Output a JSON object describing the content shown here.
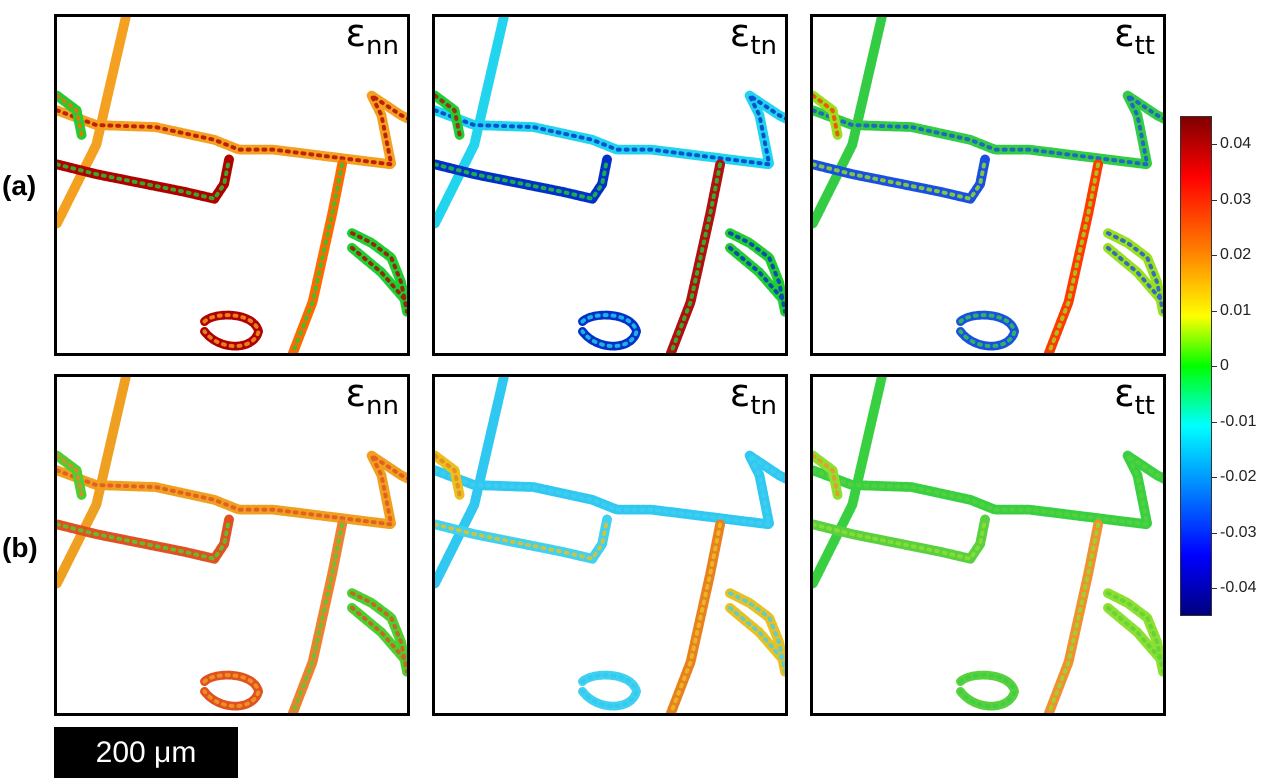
{
  "rows": [
    {
      "label": "(a)",
      "panels": [
        {
          "symbol": "ε",
          "sub": "nn",
          "c1": "#f4a020",
          "c2": "#b00000",
          "c3": "#22cc33",
          "c4": "#ff6a00"
        },
        {
          "symbol": "ε",
          "sub": "tn",
          "c1": "#22d4ee",
          "c2": "#0030c8",
          "c3": "#22cc33",
          "c4": "#b01010"
        },
        {
          "symbol": "ε",
          "sub": "tt",
          "c1": "#33cc44",
          "c2": "#1a50e0",
          "c3": "#9ae020",
          "c4": "#ff3a00"
        }
      ]
    },
    {
      "label": "(b)",
      "panels": [
        {
          "symbol": "ε",
          "sub": "nn",
          "c1": "#f0a020",
          "c2": "#e05020",
          "c3": "#4cd030",
          "c4": "#f08030"
        },
        {
          "symbol": "ε",
          "sub": "tn",
          "c1": "#30c8f0",
          "c2": "#40d0f0",
          "c3": "#e8c020",
          "c4": "#e88020"
        },
        {
          "symbol": "ε",
          "sub": "tt",
          "c1": "#38d040",
          "c2": "#5ad040",
          "c3": "#8ee030",
          "c4": "#f09030"
        }
      ]
    }
  ],
  "colorbar": {
    "ticks": [
      "0.04",
      "0.03",
      "0.02",
      "0.01",
      "0",
      "-0.01",
      "-0.02",
      "-0.03",
      "-0.04"
    ]
  },
  "scalebar": {
    "label": "200 μm"
  }
}
